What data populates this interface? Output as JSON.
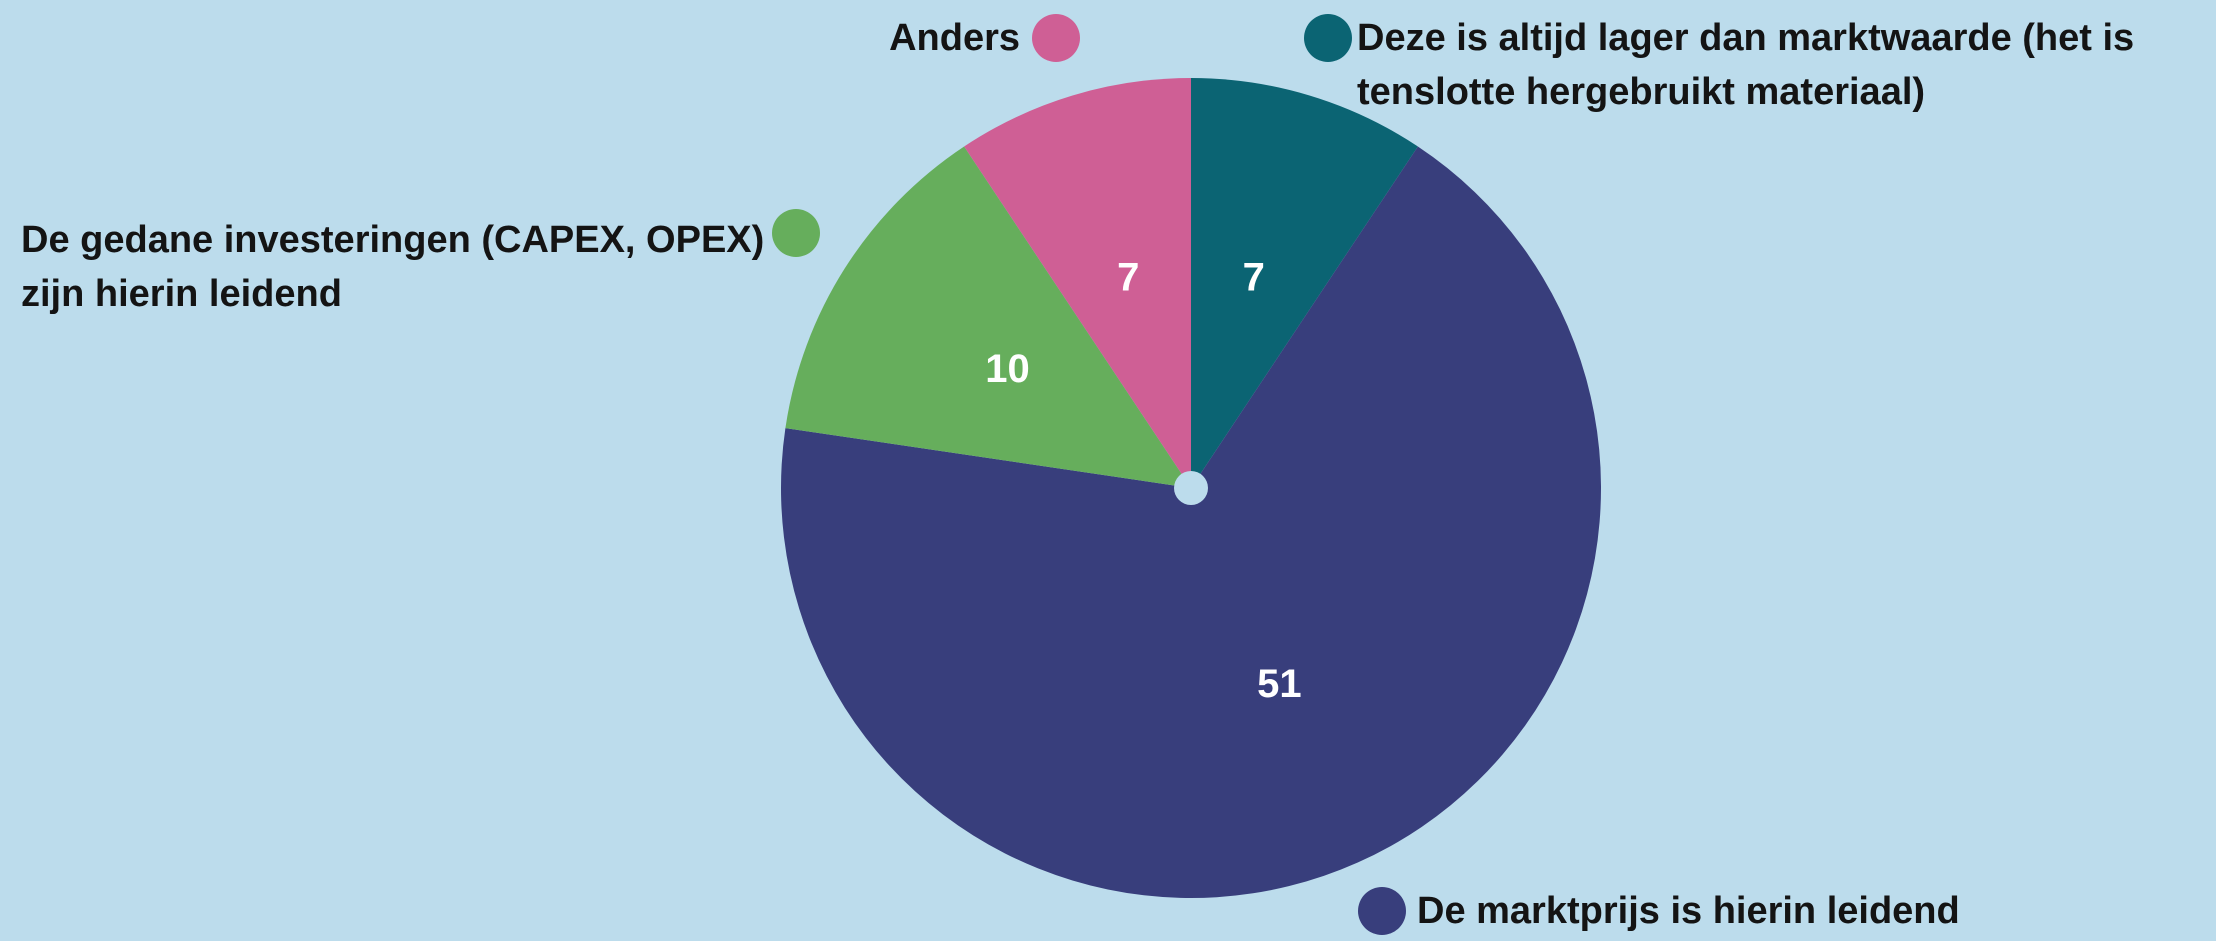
{
  "chart_data": {
    "type": "pie",
    "categories": [
      "Deze is altijd lager dan marktwaarde (het is tenslotte hergebruikt materiaal)",
      "De marktprijs is hierin leidend",
      "De gedane investeringen (CAPEX, OPEX) zijn hierin leidend",
      "Anders"
    ],
    "values": [
      7,
      51,
      10,
      7
    ],
    "colors": [
      "#0b6473",
      "#383e7c",
      "#66ae5c",
      "#cf5f95"
    ]
  }
}
